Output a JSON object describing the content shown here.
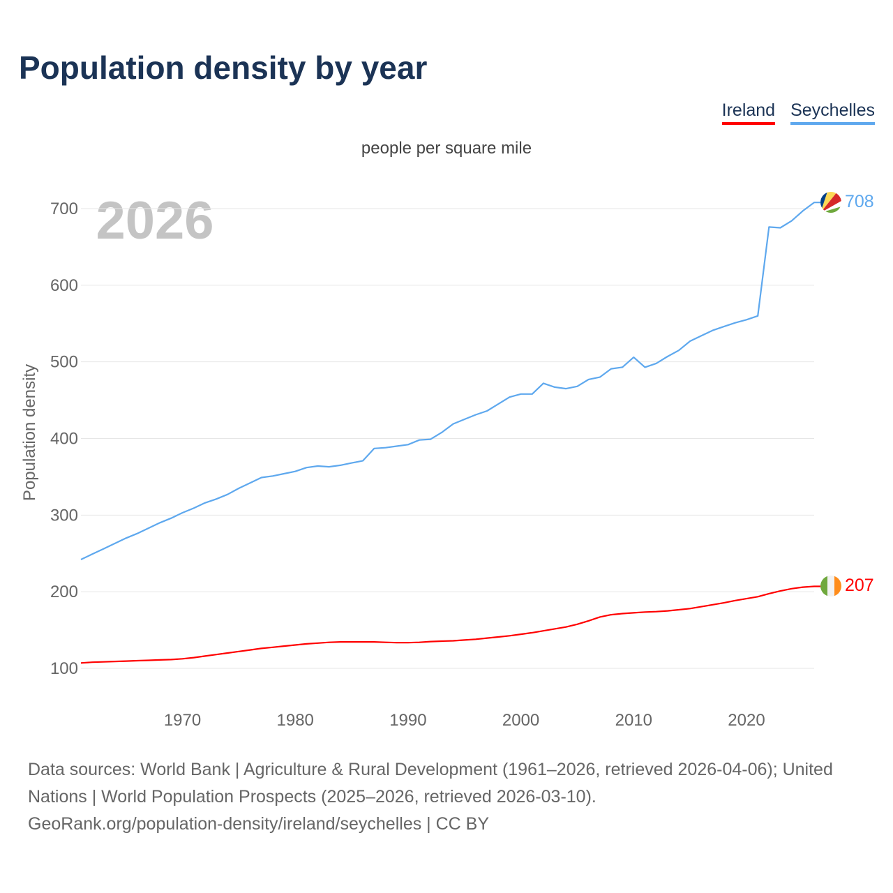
{
  "title": "Population density by year",
  "legend": [
    {
      "name": "Ireland",
      "color": "#ff0000"
    },
    {
      "name": "Seychelles",
      "color": "#5ea8ee"
    }
  ],
  "footer": {
    "sources": "Data sources: World Bank | Agriculture & Rural Development (1961–2026, retrieved 2026-04-06); United Nations | World Population Prospects (2025–2026, retrieved 2026-03-10).",
    "link": "GeoRank.org/population-density/ireland/seychelles | CC BY"
  },
  "chart_data": {
    "type": "line",
    "title": "Population density by year",
    "subtitle": "people per square mile",
    "xlabel": "",
    "ylabel": "Population density",
    "year_watermark": "2026",
    "xlim": [
      1961,
      2026
    ],
    "ylim": [
      100,
      700
    ],
    "x_ticks": [
      1970,
      1980,
      1990,
      2000,
      2010,
      2020
    ],
    "y_ticks": [
      100,
      200,
      300,
      400,
      500,
      600,
      700
    ],
    "grid": true,
    "legend_position": "top-right",
    "x": [
      1961,
      1962,
      1963,
      1964,
      1965,
      1966,
      1967,
      1968,
      1969,
      1970,
      1971,
      1972,
      1973,
      1974,
      1975,
      1976,
      1977,
      1978,
      1979,
      1980,
      1981,
      1982,
      1983,
      1984,
      1985,
      1986,
      1987,
      1988,
      1989,
      1990,
      1991,
      1992,
      1993,
      1994,
      1995,
      1996,
      1997,
      1998,
      1999,
      2000,
      2001,
      2002,
      2003,
      2004,
      2005,
      2006,
      2007,
      2008,
      2009,
      2010,
      2011,
      2012,
      2013,
      2014,
      2015,
      2016,
      2017,
      2018,
      2019,
      2020,
      2021,
      2022,
      2023,
      2024,
      2025,
      2026
    ],
    "series": [
      {
        "name": "Seychelles",
        "color": "#5ea8ee",
        "end_label": "708",
        "values": [
          242,
          249,
          256,
          263,
          270,
          276,
          283,
          290,
          296,
          303,
          309,
          316,
          321,
          327,
          335,
          342,
          349,
          351,
          354,
          357,
          362,
          364,
          363,
          365,
          368,
          371,
          387,
          388,
          390,
          392,
          398,
          399,
          408,
          419,
          425,
          431,
          436,
          445,
          454,
          458,
          458,
          472,
          467,
          465,
          468,
          477,
          480,
          491,
          493,
          506,
          493,
          498,
          507,
          515,
          527,
          534,
          541,
          546,
          551,
          555,
          560,
          676,
          675,
          684,
          697,
          708
        ]
      },
      {
        "name": "Ireland",
        "color": "#ff0000",
        "end_label": "207",
        "values": [
          107,
          108,
          108.5,
          109,
          109.5,
          110,
          110.5,
          111,
          111.5,
          112.5,
          114,
          116,
          118,
          120,
          122,
          124,
          126,
          127.5,
          129,
          130.5,
          132,
          133,
          134,
          134.5,
          134.5,
          134.5,
          134.5,
          134,
          133.5,
          133.5,
          134,
          135,
          135.5,
          136,
          137,
          138,
          139.5,
          141,
          142.5,
          144.5,
          146.5,
          149,
          151.5,
          154,
          157.5,
          162,
          167,
          170,
          171.5,
          172.5,
          173.5,
          174,
          175,
          176.5,
          178,
          180.5,
          183,
          185.5,
          188.5,
          191,
          193.5,
          197.5,
          201,
          204,
          206,
          207
        ]
      }
    ]
  }
}
